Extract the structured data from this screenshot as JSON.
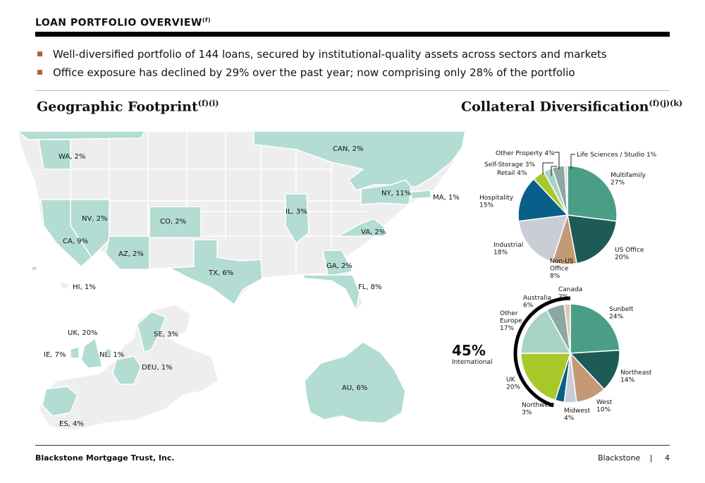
{
  "header": {
    "title": "LOAN PORTFOLIO OVERVIEW",
    "title_sup": "(f)"
  },
  "bullets": [
    "Well-diversified portfolio of 144 loans, secured by institutional-quality assets across sectors and markets",
    "Office exposure has declined by 29% over the past year; now comprising only 28% of the portfolio"
  ],
  "geo": {
    "title": "Geographic Footprint",
    "title_sup": "(f)(i)",
    "labels": [
      "WA, 2%",
      "CAN, 2%",
      "NY, 11%",
      "MA, 1%",
      "NV, 2%",
      "CO, 2%",
      "IL, 3%",
      "CA, 9%",
      "VA, 2%",
      "AZ, 2%",
      "TX, 6%",
      "GA, 2%",
      "HI, 1%",
      "FL, 8%",
      "UK, 20%",
      "SE, 3%",
      "IE, 7%",
      "NL, 1%",
      "DEU, 1%",
      "AU, 6%",
      "ES, 4%"
    ]
  },
  "collateral": {
    "title": "Collateral Diversification",
    "title_sup": "(f)(j)(k)"
  },
  "international": {
    "value": "45%",
    "label": "International"
  },
  "colors": {
    "accent": "#b0623a",
    "map_land": "#eeeeee",
    "map_highlight": "#b3dcd3",
    "multifamily": "#4b9e86",
    "us_office": "#1e5b56",
    "non_us_office": "#c49a76",
    "industrial": "#c9ced6",
    "hospitality": "#0a5f8a",
    "retail": "#a8c82a",
    "self_storage": "#a8d3c6",
    "other_property": "#8ba8a4",
    "life_sciences": "#d9d9d9",
    "sunbelt": "#4b9e86",
    "northeast": "#1e5b56",
    "west": "#c49a76",
    "midwest": "#c9ced6",
    "northwest": "#0a5f8a",
    "uk": "#a8c82a",
    "other_europe": "#a8d3c6",
    "australia": "#8ba8a4",
    "canada": "#e0c9b8"
  },
  "chart_data": [
    {
      "type": "pie",
      "title": "Collateral Diversification",
      "labels": [
        "Multifamily",
        "US Office",
        "Non-US Office",
        "Industrial",
        "Hospitality",
        "Retail",
        "Self-Storage",
        "Other Property",
        "Life Sciences / Studio"
      ],
      "values": [
        27,
        20,
        8,
        18,
        15,
        4,
        3,
        4,
        1
      ],
      "display": [
        "Multifamily|27%",
        "US Office|20%",
        "Non-US|Office|8%",
        "Industrial|18%",
        "Hospitality|15%",
        "Retail 4%",
        "Self-Storage 3%",
        "Other Property 4%",
        "Life Sciences / Studio 1%"
      ]
    },
    {
      "type": "pie",
      "title": "",
      "labels": [
        "Sunbelt",
        "Northeast",
        "West",
        "Midwest",
        "Northwest",
        "UK",
        "Other Europe",
        "Australia",
        "Canada"
      ],
      "values": [
        24,
        14,
        10,
        4,
        3,
        20,
        17,
        6,
        2
      ],
      "display": [
        "Sunbelt|24%",
        "Northeast|14%",
        "West|10%",
        "Midwest|4%",
        "Northwest|3%",
        "UK|20%",
        "Other|Europe|17%",
        "Australia|6%",
        "Canada|2%"
      ]
    }
  ],
  "footer": {
    "left": "Blackstone Mortgage Trust, Inc.",
    "brand": "Blackstone",
    "separator": "|",
    "page": "4"
  }
}
